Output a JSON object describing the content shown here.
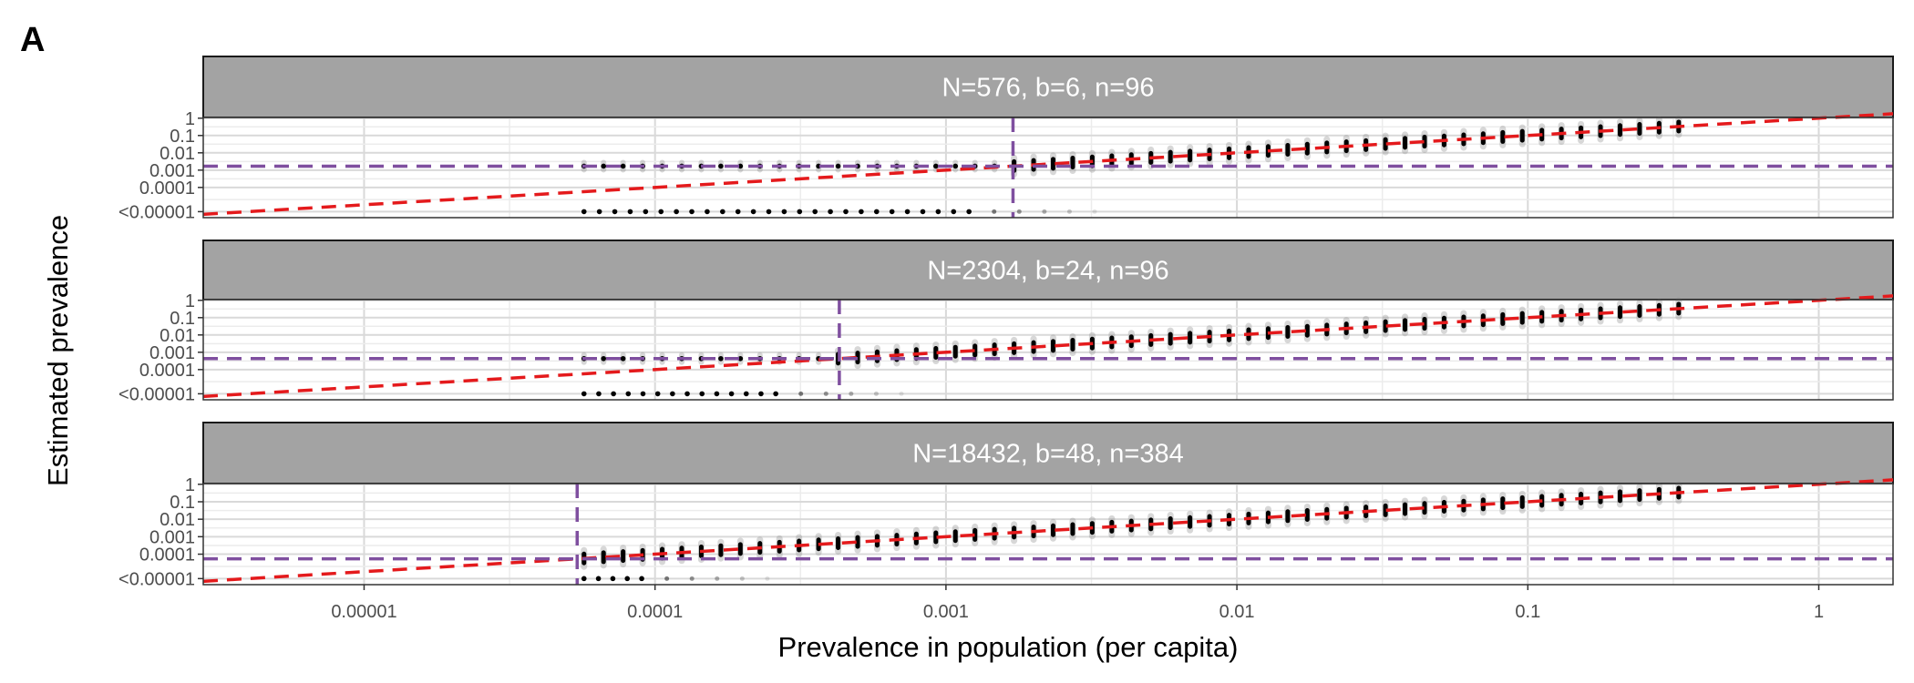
{
  "figure": {
    "panel_tag": "A"
  },
  "chart_data": {
    "type": "scatter",
    "facet_layout": "vertical",
    "xlabel": "Prevalence in population (per capita)",
    "ylabel": "Estimated prevalence",
    "x_scale": "log10",
    "y_scale": "log10",
    "xlim": [
      2.8e-06,
      1.8
    ],
    "ylim": [
      1.8e-06,
      1.1
    ],
    "x_ticks": [
      {
        "value": 1e-05,
        "label": "0.00001"
      },
      {
        "value": 0.0001,
        "label": "0.0001"
      },
      {
        "value": 0.001,
        "label": "0.001"
      },
      {
        "value": 0.01,
        "label": "0.01"
      },
      {
        "value": 0.1,
        "label": "0.1"
      },
      {
        "value": 1,
        "label": "1"
      }
    ],
    "y_ticks": [
      {
        "value": 1,
        "label": "1"
      },
      {
        "value": 0.1,
        "label": "0.1"
      },
      {
        "value": 0.01,
        "label": "0.01"
      },
      {
        "value": 0.001,
        "label": "0.001"
      },
      {
        "value": 0.0001,
        "label": "0.0001"
      },
      {
        "value": 4e-06,
        "label": "<0.00001"
      }
    ],
    "grid": true,
    "colors": {
      "identity_line": "#e41a1c",
      "threshold_line": "#7f4f9f",
      "points": "#000000",
      "strip_fill": "#a3a3a3",
      "grid": "#d9d9d9"
    },
    "x_range_points": [
      5.7e-05,
      0.33
    ],
    "panels": [
      {
        "strip": "N=576, b=6, n=96",
        "detection_limit_x": 0.0017,
        "detection_limit_y": 0.0017,
        "min_estimate": 0.0017,
        "undetected_x_range": [
          5.7e-05,
          0.0012
        ]
      },
      {
        "strip": "N=2304, b=24, n=96",
        "detection_limit_x": 0.00043,
        "detection_limit_y": 0.00043,
        "min_estimate": 0.00043,
        "undetected_x_range": [
          5.7e-05,
          0.00026
        ]
      },
      {
        "strip": "N=18432, b=48, n=384",
        "detection_limit_x": 5.4e-05,
        "detection_limit_y": 5.4e-05,
        "min_estimate": 5.4e-05,
        "undetected_x_range": [
          5.7e-05,
          9e-05
        ]
      }
    ]
  }
}
